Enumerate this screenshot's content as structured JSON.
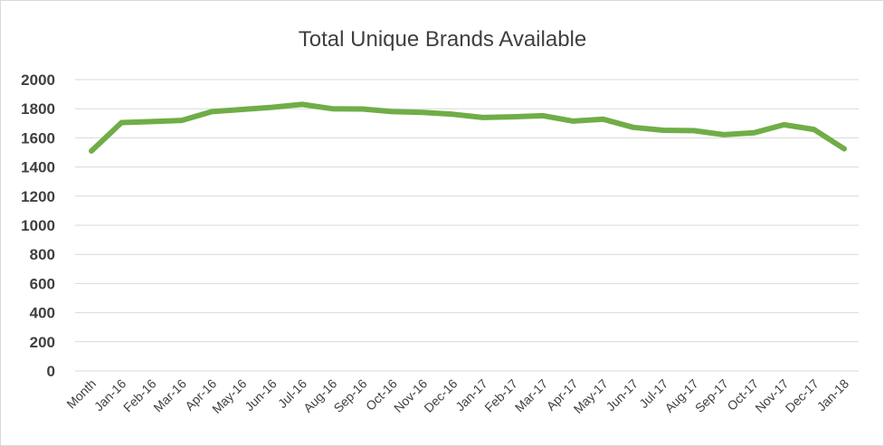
{
  "chart_data": {
    "type": "line",
    "title": "Total Unique Brands Available",
    "xlabel": "",
    "ylabel": "",
    "ylim": [
      0,
      2000
    ],
    "y_ticks": [
      "0",
      "200",
      "400",
      "600",
      "800",
      "1000",
      "1200",
      "1400",
      "1600",
      "1800",
      "2000"
    ],
    "grid": true,
    "legend": "none",
    "categories": [
      "Month",
      "Jan-16",
      "Feb-16",
      "Mar-16",
      "Apr-16",
      "May-16",
      "Jun-16",
      "Jul-16",
      "Aug-16",
      "Sep-16",
      "Oct-16",
      "Nov-16",
      "Dec-16",
      "Jan-17",
      "Feb-17",
      "Mar-17",
      "Apr-17",
      "May-17",
      "Jun-17",
      "Jul-17",
      "Aug-17",
      "Sep-17",
      "Oct-17",
      "Nov-17",
      "Dec-17",
      "Jan-18"
    ],
    "series": [
      {
        "values": [
          1510,
          1705,
          1712,
          1720,
          1780,
          1795,
          1810,
          1830,
          1800,
          1798,
          1780,
          1775,
          1762,
          1740,
          1745,
          1752,
          1715,
          1728,
          1672,
          1652,
          1650,
          1622,
          1635,
          1690,
          1658,
          1525
        ],
        "color": "#70ad47"
      }
    ]
  },
  "colors": {
    "line": "#70ad47",
    "grid": "#d9d9d9",
    "text": "#404040"
  }
}
